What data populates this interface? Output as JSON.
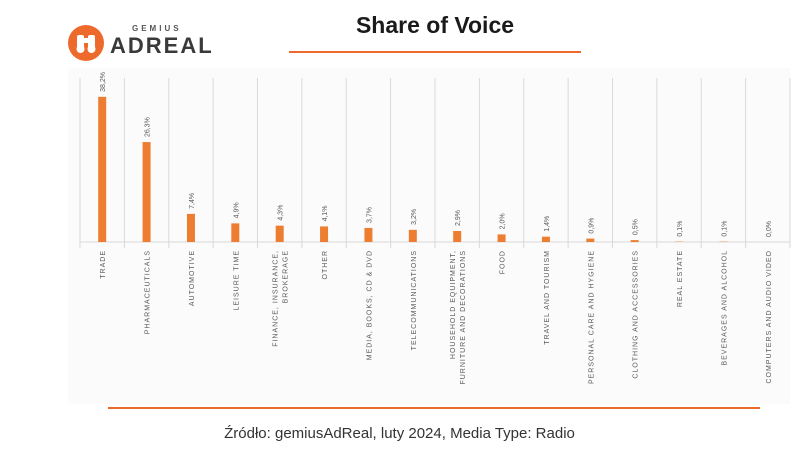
{
  "header": {
    "logo_small": "GEMIUS",
    "logo_big": "ADREAL",
    "logo_icon": "binoculars-icon",
    "title": "Share of Voice"
  },
  "footer": {
    "source": "Źródło: gemiusAdReal, luty 2024, Media Type: Radio"
  },
  "colors": {
    "accent": "#ee6a2c",
    "bar": "#ed7d31",
    "grid": "#d9d9d9",
    "text": "#595959"
  },
  "chart_data": {
    "type": "bar",
    "title": "Share of Voice",
    "xlabel": "",
    "ylabel": "",
    "ylim": [
      0,
      40
    ],
    "grid": "vertical separators",
    "legend": "none",
    "categories": [
      "TRADE",
      "PHARMACEUTICALS",
      "AUTOMOTIVE",
      "LEISURE TIME",
      [
        "FINANCE, INSURANCE,",
        "BROKERAGE"
      ],
      "OTHER",
      "MEDIA, BOOKS, CD & DVD",
      "TELECOMMUNICATIONS",
      [
        "HOUSEHOLD EQUIPMENT,",
        "FURNITURE AND DECORATIONS"
      ],
      "FOOD",
      "TRAVEL AND TOURISM",
      "PERSONAL CARE AND HYGIENE",
      "CLOTHING AND ACCESSORIES",
      "REAL ESTATE",
      "BEVERAGES AND ALCOHOL",
      "COMPUTERS AND AUDIO VIDEO"
    ],
    "values": [
      38.2,
      26.3,
      7.4,
      4.9,
      4.3,
      4.1,
      3.7,
      3.2,
      2.9,
      2.0,
      1.4,
      0.9,
      0.5,
      0.1,
      0.1,
      0.0
    ],
    "value_labels": [
      "38,2%",
      "26,3%",
      "7,4%",
      "4,9%",
      "4,3%",
      "4,1%",
      "3,7%",
      "3,2%",
      "2,9%",
      "2,0%",
      "1,4%",
      "0,9%",
      "0,5%",
      "0,1%",
      "0,1%",
      "0,0%"
    ]
  }
}
